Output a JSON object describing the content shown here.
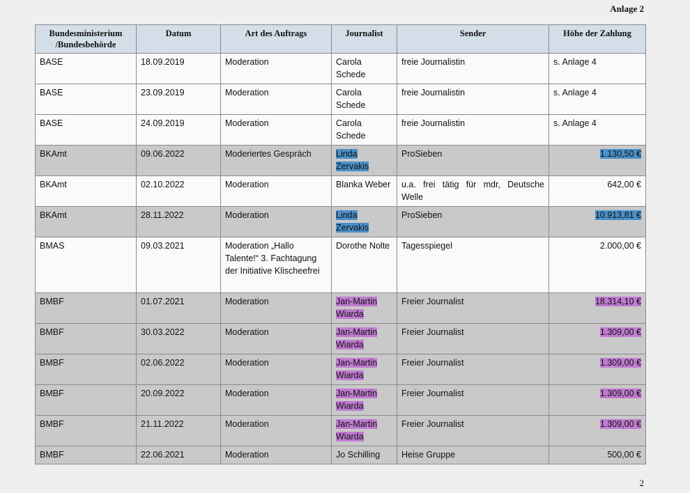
{
  "annex_label": "Anlage 2",
  "page_number": "2",
  "colors": {
    "header_bg": "#d3dee9",
    "highlight_blue": "#4a90c8",
    "highlight_purple": "#c07ad0",
    "gray_row": "#c9c9c9"
  },
  "table": {
    "headers": {
      "ministry_line1": "Bundesministerium",
      "ministry_line2": "/Bundesbehörde",
      "date": "Datum",
      "type": "Art des Auftrags",
      "journalist": "Journalist",
      "sender": "Sender",
      "amount": "Höhe der Zahlung"
    },
    "rows": [
      {
        "ministry": "BASE",
        "date": "18.09.2019",
        "type": "Moderation",
        "journalist": "Carola Schede",
        "sender": "freie Journalistin",
        "amount": "s. Anlage 4"
      },
      {
        "ministry": "BASE",
        "date": "23.09.2019",
        "type": "Moderation",
        "journalist": "Carola Schede",
        "sender": "freie Journalistin",
        "amount": "s. Anlage 4"
      },
      {
        "ministry": "BASE",
        "date": "24.09.2019",
        "type": "Moderation",
        "journalist": "Carola Schede",
        "sender": "freie Journalistin",
        "amount": "s. Anlage 4"
      },
      {
        "ministry": "BKAmt",
        "date": "09.06.2022",
        "type": "Moderiertes Gespräch",
        "journalist": "Linda Zervakis",
        "sender": "ProSieben",
        "amount": "1.130,50 €"
      },
      {
        "ministry": "BKAmt",
        "date": "02.10.2022",
        "type": "Moderation",
        "journalist": "Blanka Weber",
        "sender": "u.a. frei tätig für mdr, Deutsche Welle",
        "amount": "642,00 €"
      },
      {
        "ministry": "BKAmt",
        "date": "28.11.2022",
        "type": "Moderation",
        "journalist": "Linda Zervakis",
        "sender": "ProSieben",
        "amount": "10.913,81 €"
      },
      {
        "ministry": "BMAS",
        "date": "09.03.2021",
        "type": "Moderation „Hallo Talente!“ 3. Fachtagung der Initiative Klischeefrei",
        "journalist": "Dorothe Nolte",
        "sender": "Tagesspiegel",
        "amount": "2.000,00 €"
      },
      {
        "ministry": "BMBF",
        "date": "01.07.2021",
        "type": "Moderation",
        "journalist": "Jan-Martin Wiarda",
        "sender": "Freier Journalist",
        "amount": "18.314,10 €"
      },
      {
        "ministry": "BMBF",
        "date": "30.03.2022",
        "type": "Moderation",
        "journalist": "Jan-Martin Wiarda",
        "sender": "Freier Journalist",
        "amount": "1.309,00 €"
      },
      {
        "ministry": "BMBF",
        "date": "02.06.2022",
        "type": "Moderation",
        "journalist": "Jan-Martin Wiarda",
        "sender": "Freier Journalist",
        "amount": "1.309,00 €"
      },
      {
        "ministry": "BMBF",
        "date": "20.09.2022",
        "type": "Moderation",
        "journalist": "Jan-Martin Wiarda",
        "sender": "Freier Journalist",
        "amount": "1.309,00 €"
      },
      {
        "ministry": "BMBF",
        "date": "21.11.2022",
        "type": "Moderation",
        "journalist": "Jan-Martin Wiarda",
        "sender": "Freier Journalist",
        "amount": "1.309,00 €"
      },
      {
        "ministry": "BMBF",
        "date": "22.06.2021",
        "type": "Moderation",
        "journalist": "Jo Schilling",
        "sender": "Heise Gruppe",
        "amount": "500,00 €"
      }
    ]
  }
}
